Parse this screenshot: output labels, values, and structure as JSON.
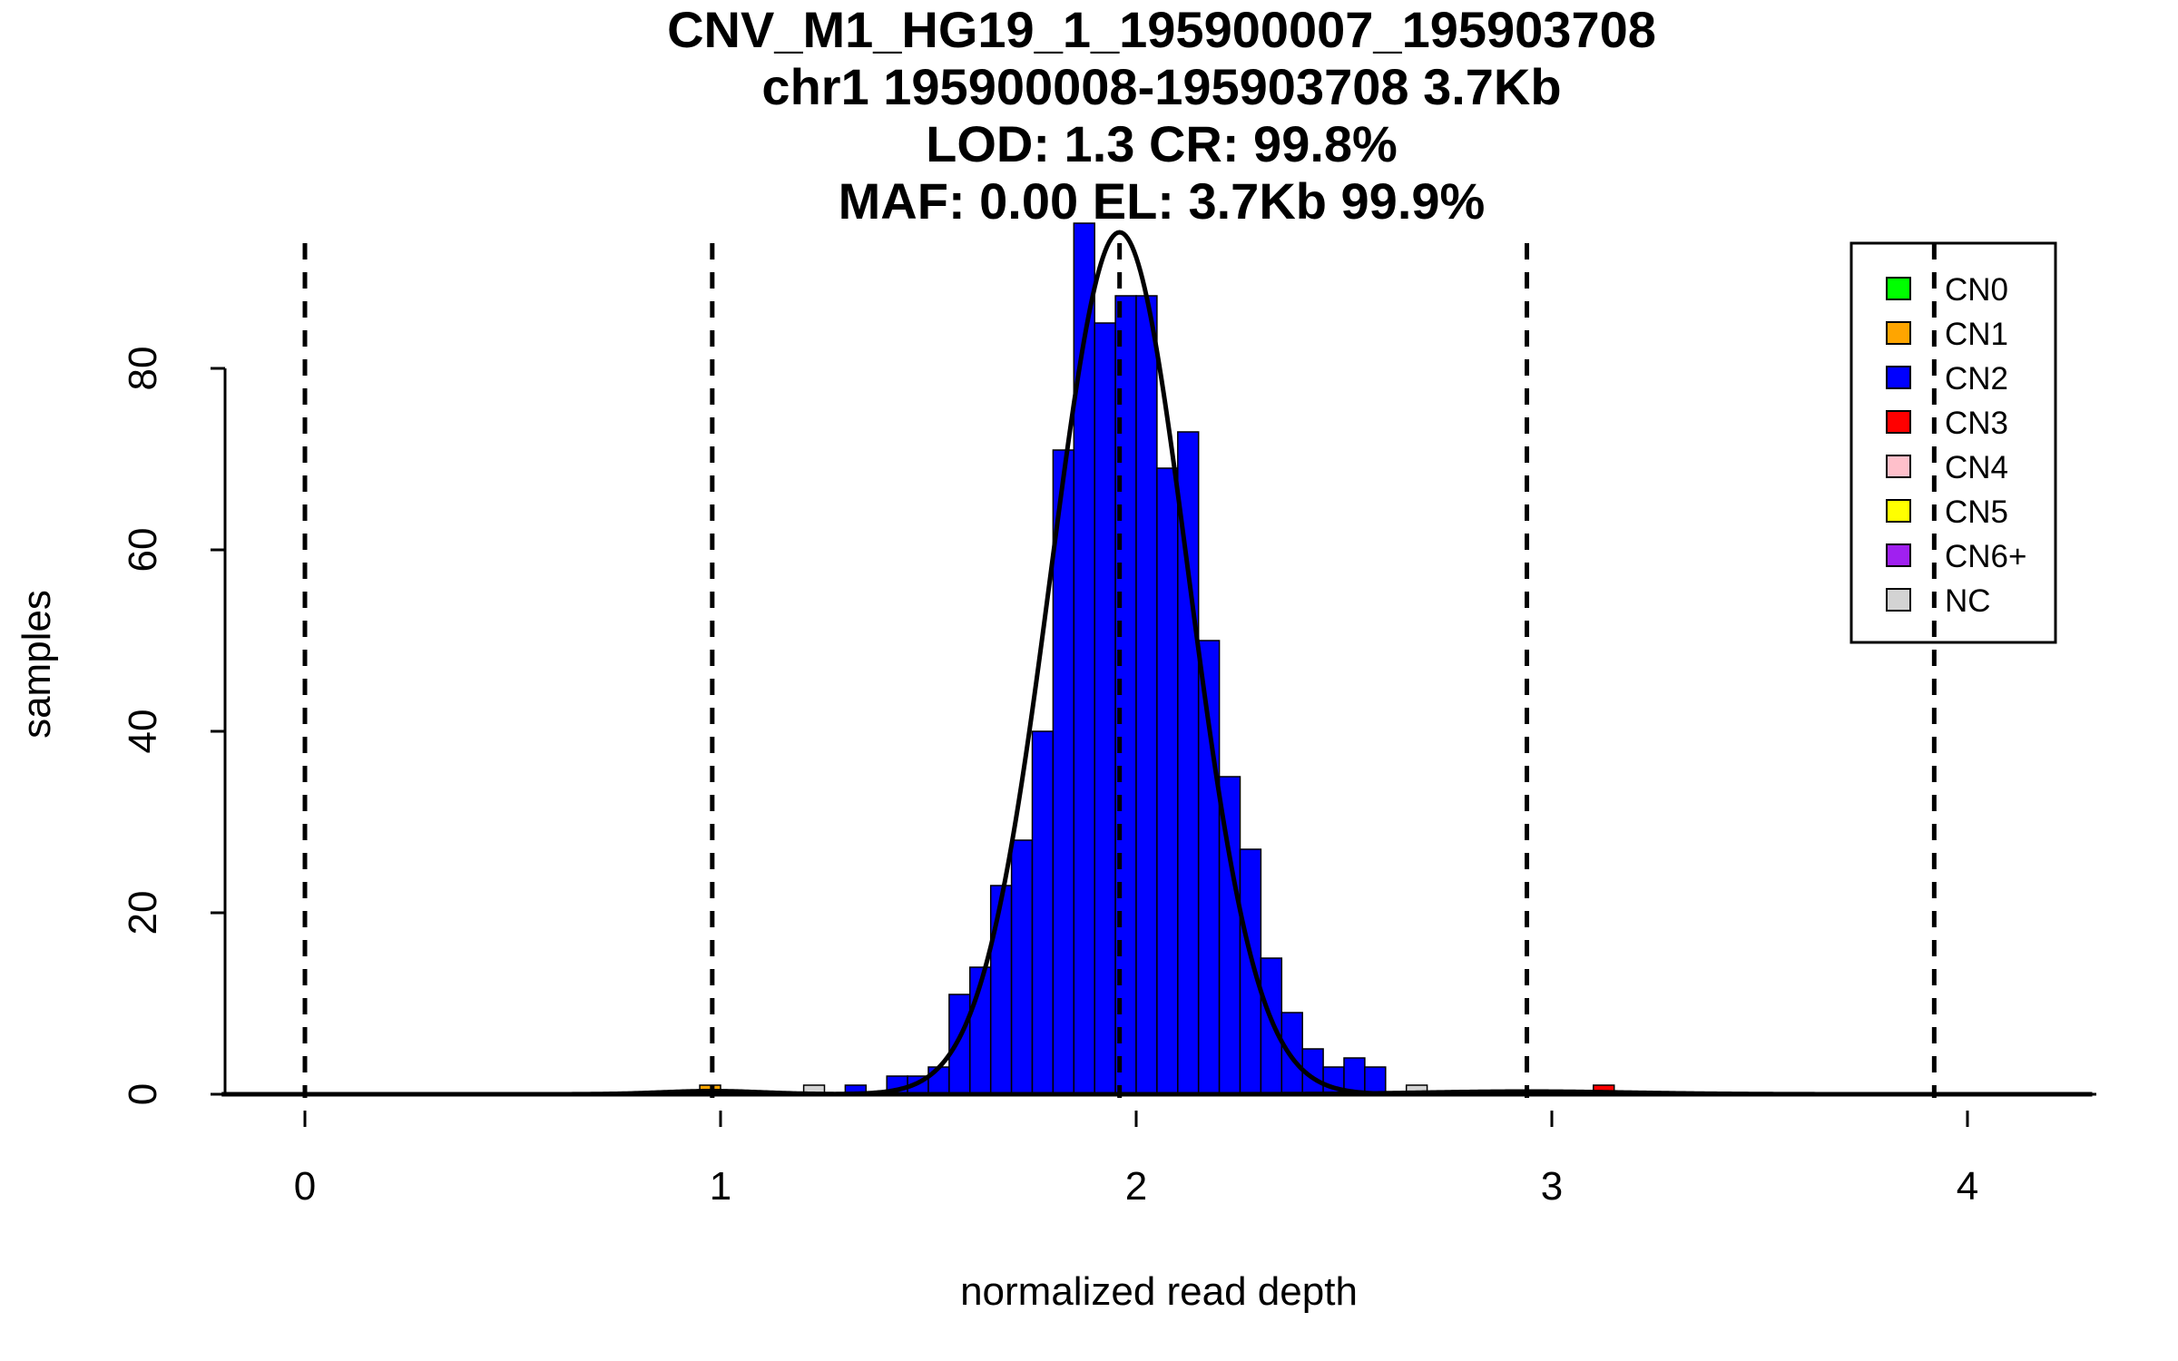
{
  "chart_data": {
    "type": "bar",
    "title_lines": [
      "CNV_M1_HG19_1_195900007_195903708",
      "chr1 195900008-195903708 3.7Kb",
      "LOD: 1.3 CR: 99.8%",
      "MAF: 0.00 EL: 3.7Kb 99.9%"
    ],
    "xlabel": "normalized read depth",
    "ylabel": "samples",
    "xlim": [
      -0.2,
      4.3
    ],
    "ylim": [
      0,
      96
    ],
    "x_ticks": [
      "0",
      "1",
      "2",
      "3",
      "4"
    ],
    "y_ticks": [
      "0",
      "20",
      "40",
      "60",
      "80"
    ],
    "bin_width": 0.05,
    "bars": [
      {
        "x0": 0.95,
        "count": 1,
        "cn": "CN1"
      },
      {
        "x0": 1.2,
        "count": 1,
        "cn": "NC"
      },
      {
        "x0": 1.3,
        "count": 1,
        "cn": "CN2"
      },
      {
        "x0": 1.4,
        "count": 2,
        "cn": "CN2"
      },
      {
        "x0": 1.45,
        "count": 2,
        "cn": "CN2"
      },
      {
        "x0": 1.5,
        "count": 3,
        "cn": "CN2"
      },
      {
        "x0": 1.55,
        "count": 11,
        "cn": "CN2"
      },
      {
        "x0": 1.6,
        "count": 14,
        "cn": "CN2"
      },
      {
        "x0": 1.65,
        "count": 23,
        "cn": "CN2"
      },
      {
        "x0": 1.7,
        "count": 28,
        "cn": "CN2"
      },
      {
        "x0": 1.75,
        "count": 40,
        "cn": "CN2"
      },
      {
        "x0": 1.8,
        "count": 71,
        "cn": "CN2"
      },
      {
        "x0": 1.85,
        "count": 96,
        "cn": "CN2"
      },
      {
        "x0": 1.9,
        "count": 85,
        "cn": "CN2"
      },
      {
        "x0": 1.95,
        "count": 88,
        "cn": "CN2"
      },
      {
        "x0": 2.0,
        "count": 88,
        "cn": "CN2"
      },
      {
        "x0": 2.05,
        "count": 69,
        "cn": "CN2"
      },
      {
        "x0": 2.1,
        "count": 73,
        "cn": "CN2"
      },
      {
        "x0": 2.15,
        "count": 50,
        "cn": "CN2"
      },
      {
        "x0": 2.2,
        "count": 35,
        "cn": "CN2"
      },
      {
        "x0": 2.25,
        "count": 27,
        "cn": "CN2"
      },
      {
        "x0": 2.3,
        "count": 15,
        "cn": "CN2"
      },
      {
        "x0": 2.35,
        "count": 9,
        "cn": "CN2"
      },
      {
        "x0": 2.4,
        "count": 5,
        "cn": "CN2"
      },
      {
        "x0": 2.45,
        "count": 3,
        "cn": "CN2"
      },
      {
        "x0": 2.5,
        "count": 4,
        "cn": "CN2"
      },
      {
        "x0": 2.55,
        "count": 3,
        "cn": "CN2"
      },
      {
        "x0": 2.65,
        "count": 1,
        "cn": "NC"
      },
      {
        "x0": 3.1,
        "count": 1,
        "cn": "CN3"
      }
    ],
    "fit_curves": [
      {
        "mean": 1.96,
        "sd": 0.165,
        "peak": 95
      },
      {
        "mean": 0.98,
        "sd": 0.12,
        "peak": 0.35
      },
      {
        "mean": 2.94,
        "sd": 0.25,
        "peak": 0.3
      }
    ],
    "dashed_lines_x": [
      0,
      0.98,
      1.96,
      2.94,
      3.92
    ],
    "legend": {
      "position": "top-right",
      "items": [
        {
          "label": "CN0",
          "color": "#00ff00"
        },
        {
          "label": "CN1",
          "color": "#ffa500"
        },
        {
          "label": "CN2",
          "color": "#0000ff"
        },
        {
          "label": "CN3",
          "color": "#ff0000"
        },
        {
          "label": "CN4",
          "color": "#ffc0cb"
        },
        {
          "label": "CN5",
          "color": "#ffff00"
        },
        {
          "label": "CN6+",
          "color": "#a020f0"
        },
        {
          "label": "NC",
          "color": "#d3d3d3"
        }
      ]
    }
  }
}
